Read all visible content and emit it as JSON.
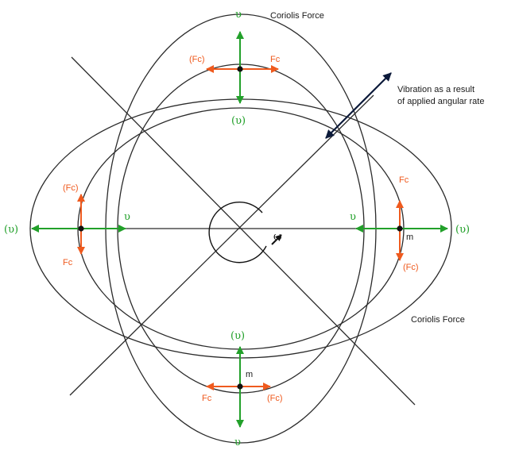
{
  "labels": {
    "coriolis_top": "Coriolis Force",
    "coriolis_bottom": "Coriolis Force",
    "vibration_line1": "Vibration as a result",
    "vibration_line2": "of applied angular rate",
    "v_top": "υ",
    "v_top_reaction": "(υ)",
    "fc_top_left": "(Fc)",
    "fc_top_right": "Fc",
    "v_left_outer": "(υ)",
    "v_left_inner": "υ",
    "fc_left_upper": "(Fc)",
    "fc_left_lower": "Fc",
    "v_right_inner": "υ",
    "v_right_outer": "(υ)",
    "m_right": "m",
    "fc_right_upper": "Fc",
    "fc_right_lower": "(Fc)",
    "omega": "ω",
    "v_bottom_reaction": "(υ)",
    "m_bottom": "m",
    "fc_bottom_left": "Fc",
    "fc_bottom_right": "(Fc)",
    "v_bottom": "υ"
  },
  "colors": {
    "line": "#2a2a2a",
    "velocity": "#22a02a",
    "coriolis": "#ef5a1e",
    "coriolis_light": "#f48a3a",
    "vibration_arrow": "#0c1a3a"
  }
}
